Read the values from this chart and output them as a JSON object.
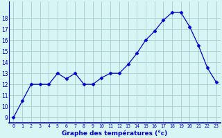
{
  "hours": [
    0,
    1,
    2,
    3,
    4,
    5,
    6,
    7,
    8,
    9,
    10,
    11,
    12,
    13,
    14,
    15,
    16,
    17,
    18,
    19,
    20,
    21,
    22,
    23
  ],
  "temperatures": [
    9,
    10.5,
    12,
    12,
    12,
    13,
    12.5,
    13,
    12,
    12,
    12.6,
    13,
    13,
    13.8,
    14.8,
    16,
    16.8,
    17.8,
    18.5,
    18.5,
    17.2,
    15.5,
    13.5,
    12.2
  ],
  "line_color": "#0000cc",
  "marker": "D",
  "marker_size": 2.5,
  "bg_color": "#d8f5f5",
  "grid_color": "#aacccc",
  "xlabel": "Graphe des températures (°c)",
  "xlabel_color": "#0000cc",
  "tick_color": "#0000cc",
  "axis_color": "#0000cc",
  "ylim": [
    8.5,
    19.5
  ],
  "xlim": [
    -0.5,
    23.5
  ],
  "yticks": [
    9,
    10,
    11,
    12,
    13,
    14,
    15,
    16,
    17,
    18
  ],
  "xtick_labels": [
    "0",
    "1",
    "2",
    "3",
    "4",
    "5",
    "6",
    "7",
    "8",
    "9",
    "10",
    "11",
    "12",
    "13",
    "14",
    "15",
    "16",
    "17",
    "18",
    "19",
    "20",
    "21",
    "22",
    "23"
  ],
  "figsize": [
    3.2,
    2.0
  ],
  "dpi": 100
}
